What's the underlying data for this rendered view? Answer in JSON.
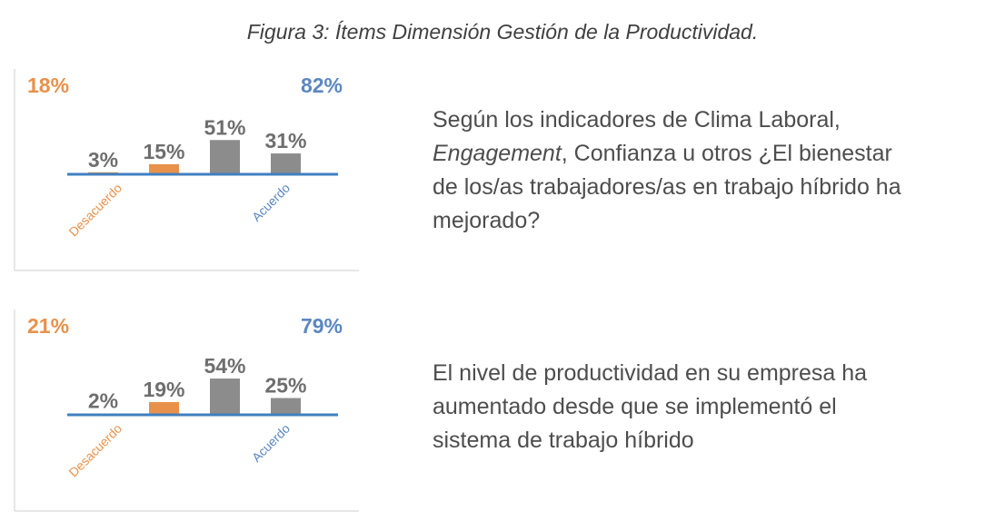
{
  "figure_title": "Figura 3: Ítems Dimensión Gestión de la Productividad.",
  "colors": {
    "disagree": "#e8914b",
    "agree": "#5b87c1",
    "neutral_bar": "#8c8c8c",
    "baseline": "#3f7fbf",
    "value_text": "#6e6e6e"
  },
  "chart_data": [
    {
      "type": "bar",
      "categories": [
        "",
        "",
        "",
        ""
      ],
      "values": [
        3,
        15,
        51,
        31
      ],
      "value_labels": [
        "3%",
        "15%",
        "51%",
        "31%"
      ],
      "bar_colors": [
        "#e8914b",
        "#e8914b",
        "#8c8c8c",
        "#8c8c8c"
      ],
      "summary_disagree": "18%",
      "summary_agree": "82%",
      "axis_label_disagree": "Desacuerdo",
      "axis_label_agree": "Acuerdo",
      "question": {
        "part1": "Según los indicadores de Clima Laboral,",
        "italic": "Engagement",
        "part2": ", Confianza u otros ¿El bienestar",
        "line3": "de los/as trabajadores/as en trabajo híbrido ha",
        "line4": "mejorado?"
      }
    },
    {
      "type": "bar",
      "categories": [
        "",
        "",
        "",
        ""
      ],
      "values": [
        2,
        19,
        54,
        25
      ],
      "value_labels": [
        "2%",
        "19%",
        "54%",
        "25%"
      ],
      "bar_colors": [
        "#e8914b",
        "#e8914b",
        "#8c8c8c",
        "#8c8c8c"
      ],
      "summary_disagree": "21%",
      "summary_agree": "79%",
      "axis_label_disagree": "Desacuerdo",
      "axis_label_agree": "Acuerdo",
      "question": {
        "line1": "El nivel de productividad en su empresa ha",
        "line2": "aumentado desde que se implementó el",
        "line3": "sistema de trabajo híbrido"
      }
    }
  ]
}
